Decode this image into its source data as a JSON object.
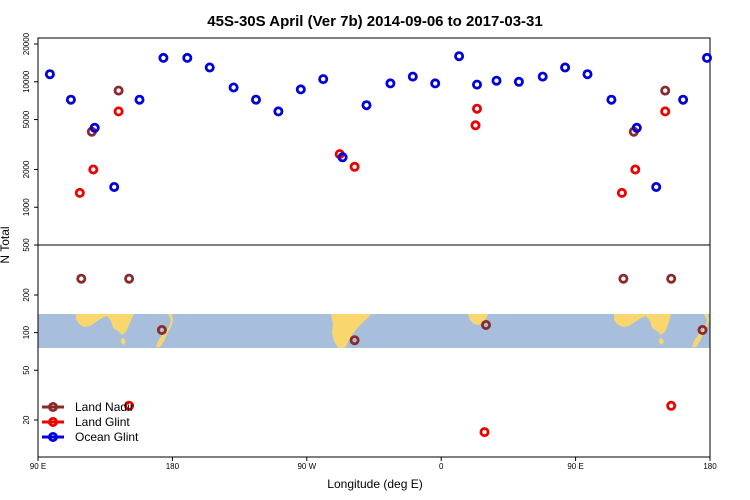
{
  "chart_data": {
    "type": "scatter",
    "title": "45S-30S April (Ver 7b)   2014-09-06 to 2017-03-31",
    "xlabel": "Longitude (deg E)",
    "ylabel": "N Total",
    "y_scale": "log",
    "ylim": [
      10,
      25000
    ],
    "x_ticks": [
      {
        "value": 90,
        "label": "90 E"
      },
      {
        "value": 180,
        "label": "180"
      },
      {
        "value": 270,
        "label": "90 W"
      },
      {
        "value": 360,
        "label": "0"
      },
      {
        "value": 450,
        "label": "90 E"
      },
      {
        "value": 540,
        "label": "180"
      }
    ],
    "y_ticks": [
      {
        "value": 20,
        "label": "20"
      },
      {
        "value": 50,
        "label": "50"
      },
      {
        "value": 100,
        "label": "100"
      },
      {
        "value": 200,
        "label": "200"
      },
      {
        "value": 500,
        "label": "500"
      },
      {
        "value": 1000,
        "label": "1000"
      },
      {
        "value": 2000,
        "label": "2000"
      },
      {
        "value": 5000,
        "label": "5000"
      },
      {
        "value": 10000,
        "label": "10000"
      },
      {
        "value": 20000,
        "label": "20000"
      }
    ],
    "legend_position": "bottom-left",
    "series": [
      {
        "name": "Land Nadir",
        "color": "#8b2a2a",
        "points": [
          {
            "x": 126,
            "y": 4000
          },
          {
            "x": 144,
            "y": 8500
          },
          {
            "x": 119,
            "y": 270
          },
          {
            "x": 151,
            "y": 270
          },
          {
            "x": 173,
            "y": 105
          },
          {
            "x": 302,
            "y": 87
          },
          {
            "x": 390,
            "y": 115
          },
          {
            "x": 482,
            "y": 270
          },
          {
            "x": 514,
            "y": 270
          },
          {
            "x": 489,
            "y": 4000
          },
          {
            "x": 510,
            "y": 8500
          },
          {
            "x": 535,
            "y": 105
          }
        ]
      },
      {
        "name": "Land Glint",
        "color": "#ee0000",
        "points": [
          {
            "x": 118,
            "y": 1300
          },
          {
            "x": 127,
            "y": 2000
          },
          {
            "x": 144,
            "y": 5800
          },
          {
            "x": 151,
            "y": 26
          },
          {
            "x": 292,
            "y": 2650
          },
          {
            "x": 302,
            "y": 2100
          },
          {
            "x": 383,
            "y": 4500
          },
          {
            "x": 384,
            "y": 6100
          },
          {
            "x": 389,
            "y": 16
          },
          {
            "x": 481,
            "y": 1300
          },
          {
            "x": 490,
            "y": 2000
          },
          {
            "x": 510,
            "y": 5800
          },
          {
            "x": 514,
            "y": 26
          }
        ]
      },
      {
        "name": "Ocean Glint",
        "color": "#0000dd",
        "points": [
          {
            "x": 98,
            "y": 11500
          },
          {
            "x": 112,
            "y": 7200
          },
          {
            "x": 128,
            "y": 4300
          },
          {
            "x": 141,
            "y": 1450
          },
          {
            "x": 158,
            "y": 7200
          },
          {
            "x": 174,
            "y": 15500
          },
          {
            "x": 190,
            "y": 15500
          },
          {
            "x": 205,
            "y": 13000
          },
          {
            "x": 221,
            "y": 9000
          },
          {
            "x": 236,
            "y": 7200
          },
          {
            "x": 251,
            "y": 5800
          },
          {
            "x": 266,
            "y": 8700
          },
          {
            "x": 281,
            "y": 10500
          },
          {
            "x": 294,
            "y": 2500
          },
          {
            "x": 310,
            "y": 6500
          },
          {
            "x": 326,
            "y": 9700
          },
          {
            "x": 341,
            "y": 11000
          },
          {
            "x": 356,
            "y": 9700
          },
          {
            "x": 372,
            "y": 16000
          },
          {
            "x": 384,
            "y": 9500
          },
          {
            "x": 397,
            "y": 10200
          },
          {
            "x": 412,
            "y": 10000
          },
          {
            "x": 428,
            "y": 11000
          },
          {
            "x": 443,
            "y": 13000
          },
          {
            "x": 458,
            "y": 11500
          },
          {
            "x": 474,
            "y": 7200
          },
          {
            "x": 491,
            "y": 4300
          },
          {
            "x": 504,
            "y": 1450
          },
          {
            "x": 522,
            "y": 7200
          },
          {
            "x": 538,
            "y": 15500
          }
        ]
      }
    ]
  },
  "map_strip": {
    "ocean_color": "#a7bedd",
    "land_color": "#f9d66e",
    "lat_range": [
      "45S",
      "30S"
    ]
  }
}
